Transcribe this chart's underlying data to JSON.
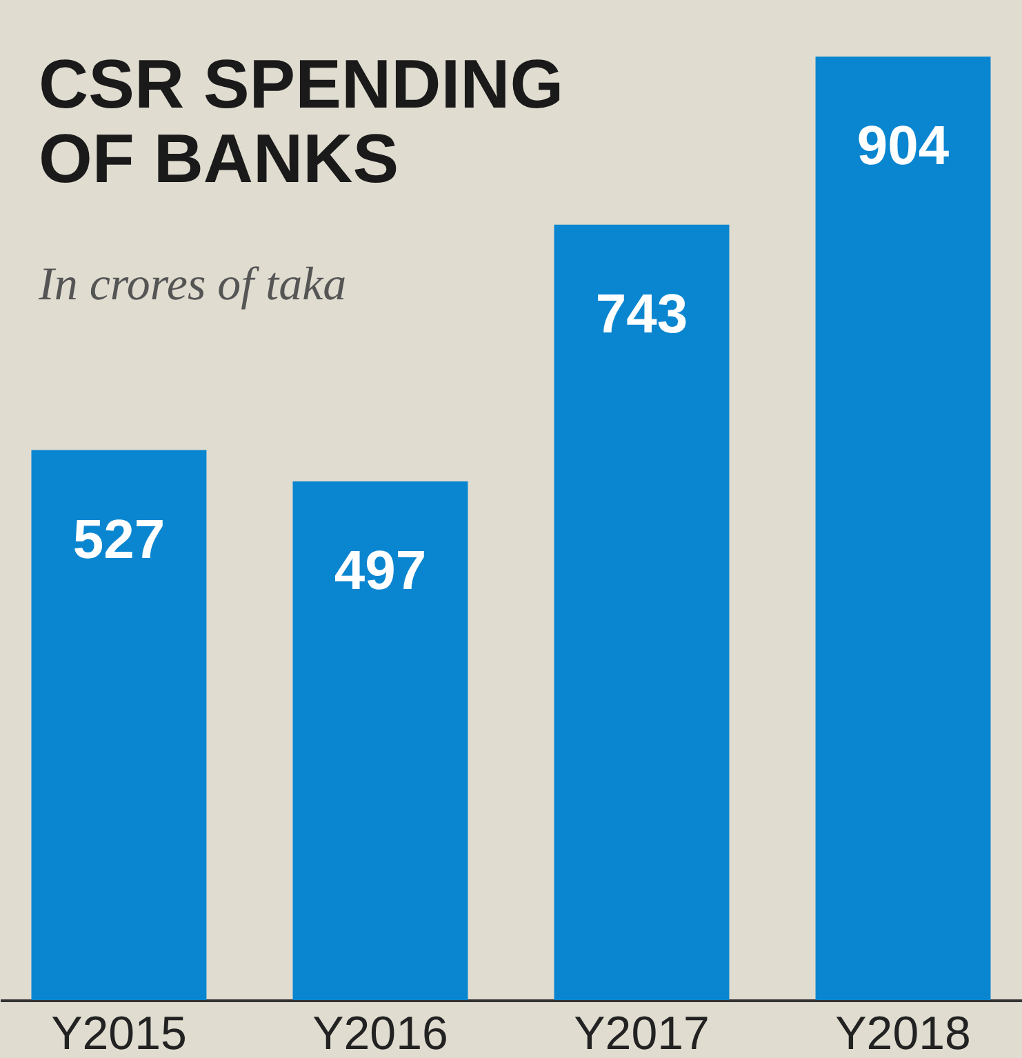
{
  "chart_data": {
    "type": "bar",
    "title": "CSR SPENDING\nOF BANKS",
    "subtitle": "In crores of taka",
    "categories": [
      "Y2015",
      "Y2016",
      "Y2017",
      "Y2018"
    ],
    "values": [
      527,
      497,
      743,
      904
    ],
    "color": "#0a86d0",
    "data_labels": true
  }
}
